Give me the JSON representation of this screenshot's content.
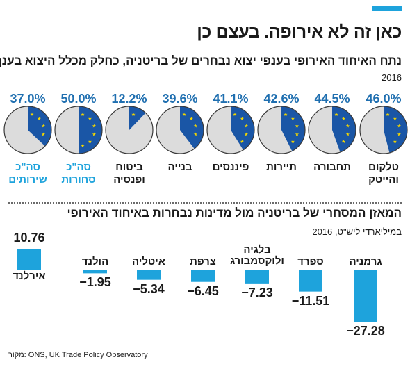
{
  "header": {
    "title": "כאן זה לא אירופה. בעצם כן",
    "subtitle": "נתח האיחוד האירופי בענפי יצוא נבחרים של בריטניה, כחלק מכלל היצוא בענף",
    "year": "2016"
  },
  "colors": {
    "accent": "#1ea3dc",
    "eu_blue": "#1a56a6",
    "pie_gray": "#dcdcdc",
    "star": "#f2d600",
    "bar": "#1ea3dc",
    "pct_text": "#1f6fb0"
  },
  "chart_data": [
    {
      "type": "pie",
      "title": "נתח האיחוד האירופי בענפי יצוא נבחרים של בריטניה, כחלק מכלל היצוא בענף",
      "unit": "%",
      "items": [
        {
          "label_lines": [
            "טלקום",
            "והייטק"
          ],
          "value": 46.0,
          "value_label": "46.0%",
          "highlight": false
        },
        {
          "label_lines": [
            "תחבורה"
          ],
          "value": 44.5,
          "value_label": "44.5%",
          "highlight": false
        },
        {
          "label_lines": [
            "תיירות"
          ],
          "value": 42.6,
          "value_label": "42.6%",
          "highlight": false
        },
        {
          "label_lines": [
            "פיננסים"
          ],
          "value": 41.1,
          "value_label": "41.1%",
          "highlight": false
        },
        {
          "label_lines": [
            "בנייה"
          ],
          "value": 39.6,
          "value_label": "39.6%",
          "highlight": false
        },
        {
          "label_lines": [
            "ביטוח",
            "ופנסיה"
          ],
          "value": 12.2,
          "value_label": "12.2%",
          "highlight": false
        },
        {
          "label_lines": [
            "סה\"כ",
            "סחורות"
          ],
          "value": 50.0,
          "value_label": "50.0%",
          "highlight": true
        },
        {
          "label_lines": [
            "סה\"כ",
            "שירותים"
          ],
          "value": 37.0,
          "value_label": "37.0%",
          "highlight": true
        }
      ]
    },
    {
      "type": "bar",
      "title": "המאזן המסחרי של בריטניה מול מדינות נבחרות באיחוד האירופי",
      "unit_label": "במיליארדי ליש\"ט, 2016",
      "categories": [
        [
          "גרמניה"
        ],
        [
          "ספרד"
        ],
        [
          "בלגיה",
          "ולוקסמבורג"
        ],
        [
          "צרפת"
        ],
        [
          "איטליה"
        ],
        [
          "הולנד"
        ],
        [
          "אירלנד"
        ]
      ],
      "values": [
        -27.28,
        -11.51,
        -7.23,
        -6.45,
        -5.34,
        -1.95,
        10.76
      ],
      "value_labels": [
        "−27.28",
        "−11.51",
        "−7.23",
        "−6.45",
        "−5.34",
        "−1.95",
        "10.76"
      ]
    }
  ],
  "source": "מקור: ONS, UK Trade Policy Observatory"
}
